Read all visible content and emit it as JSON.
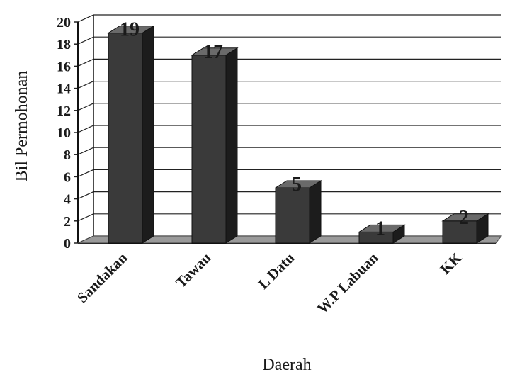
{
  "chart_data": {
    "type": "bar",
    "categories": [
      "Sandakan",
      "Tawau",
      "L Datu",
      "W.P Labuan",
      "KK"
    ],
    "values": [
      19,
      17,
      5,
      1,
      2
    ],
    "data_labels": [
      "19",
      "17",
      "5",
      "1",
      "2"
    ],
    "xlabel": "Daerah",
    "ylabel": "Bil Permohonan",
    "ylim": [
      0,
      20
    ],
    "yticks": [
      0,
      2,
      4,
      6,
      8,
      10,
      12,
      14,
      16,
      18,
      20
    ],
    "grid": true,
    "style": "3d-column",
    "colors": {
      "bar_front": "#3a3a3a",
      "bar_side": "#1c1c1c",
      "bar_top": "#6a6a6a",
      "floor": "#9a9a9a",
      "grid": "#222222"
    }
  }
}
